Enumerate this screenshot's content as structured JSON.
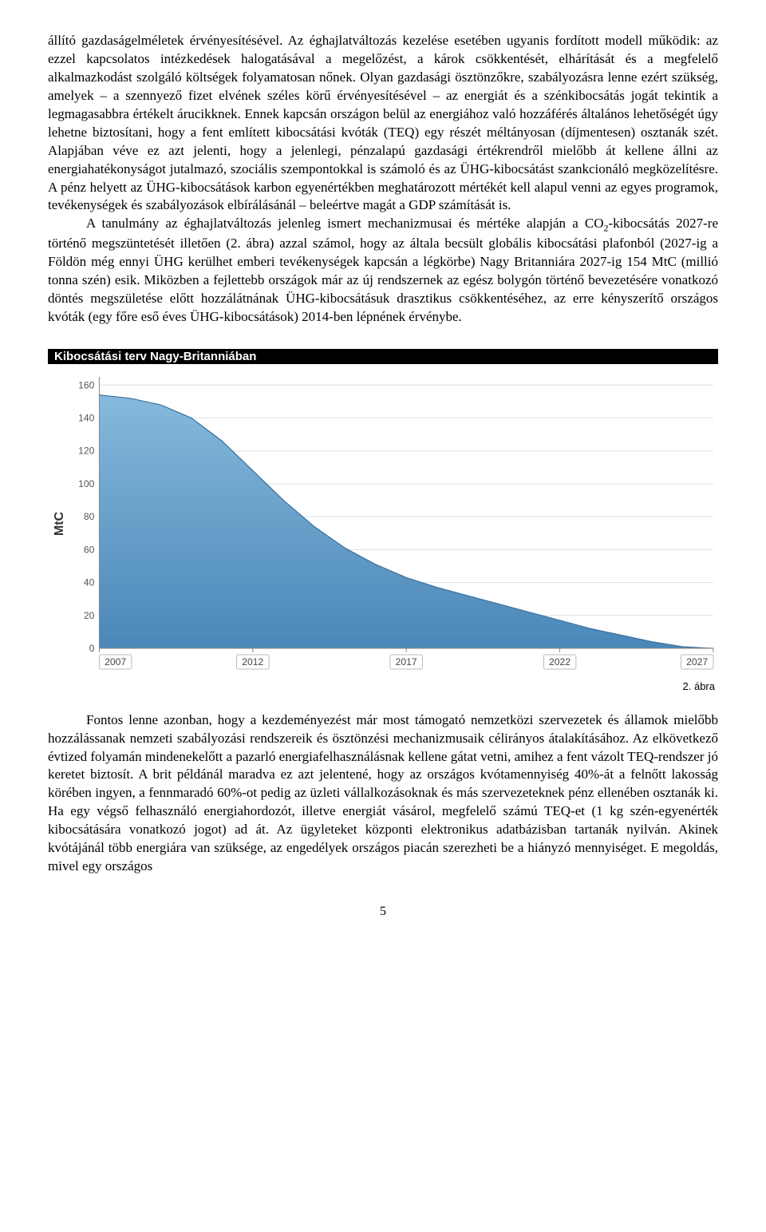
{
  "paragraphs": {
    "p1": "állító gazdaságelméletek érvényesítésével. Az éghajlatváltozás kezelése esetében ugyanis fordított modell működik: az ezzel kapcsolatos intézkedések halogatásával a megelőzést, a károk csökkentését, elhárítását és a megfelelő alkalmazkodást szolgáló költségek folyamatosan nőnek. Olyan gazdasági ösztönzőkre, szabályozásra lenne ezért szükség, amelyek – a szennyező fizet elvének széles körű érvényesítésével – az energiát és a szénkibocsátás jogát tekintik a legmagasabbra értékelt árucikknek. Ennek kapcsán országon belül az energiához való hozzáférés általános lehetőségét úgy lehetne biztosítani, hogy a fent említett kibocsátási kvóták (TEQ) egy részét méltányosan (díjmentesen) osztanák szét. Alapjában véve ez azt jelenti, hogy a jelenlegi, pénzalapú gazdasági értékrendről mielőbb át kellene állni az energiahatékonyságot jutalmazó, szociális szempontokkal is számoló és az ÜHG-kibocsátást szankcionáló megközelítésre. A pénz helyett az ÜHG-kibocsátások karbon egyenértékben meghatározott mértékét kell alapul venni az egyes programok, tevékenységek és szabályozások elbírálásánál – beleértve magát a GDP számítását is.",
    "p2_head": "A tanulmány az éghajlatváltozás jelenleg ismert mechanizmusai és mértéke alapján a CO",
    "p2_sub": "2",
    "p2_tail": "-kibocsátás 2027-re történő megszüntetését illetően (2. ábra) azzal számol, hogy az általa becsült globális kibocsátási plafonból (2027-ig a Földön még ennyi ÜHG kerülhet emberi tevékenységek kapcsán a légkörbe) Nagy Britanniára 2027-ig 154 MtC (millió tonna szén) esik. Miközben a fejlettebb országok már az új rendszernek az egész bolygón történő bevezetésére vonatkozó döntés megszületése előtt hozzálátnának ÜHG-kibocsátásuk drasztikus csökkentéséhez, az erre kényszerítő országos kvóták (egy főre eső éves ÜHG-kibocsátások) 2014-ben lépnének érvénybe.",
    "p3": "Fontos lenne azonban, hogy a kezdeményezést már most támogató nemzetközi szervezetek és államok mielőbb hozzálássanak nemzeti szabályozási rendszereik és ösztönzési mechanizmusaik célirányos átalakításához. Az elkövetkező évtized folyamán mindenekelőtt a pazarló energiafelhasználásnak kellene gátat vetni, amihez a fent vázolt TEQ-rendszer jó keretet biztosít. A brit példánál maradva ez azt jelentené, hogy az országos kvótamennyiség 40%-át a felnőtt lakosság körében ingyen, a fennmaradó 60%-ot pedig az üzleti vállalkozásoknak és más szervezeteknek pénz ellenében osztanák ki. Ha egy végső felhasználó energiahordozót, illetve energiát vásárol, megfelelő számú TEQ-et (1 kg szén-egyenérték kibocsátására vonatkozó jogot) ad át. Az ügyleteket központi elektronikus adatbázisban tartanák nyilván. Akinek kvótájánál több energiára van szüksége, az engedélyek országos piacán szerezheti be a hiányzó mennyiséget. E megoldás, mivel egy országos"
  },
  "figure": {
    "title": "Kibocsátási terv Nagy-Britanniában",
    "caption": "2. ábra",
    "chart": {
      "type": "area",
      "ylabel": "MtC",
      "y_ticks": [
        0,
        20,
        40,
        60,
        80,
        100,
        120,
        140,
        160
      ],
      "x_ticks": [
        2007,
        2012,
        2017,
        2022,
        2027
      ],
      "x_min": 2007,
      "x_max": 2027,
      "y_min": 0,
      "y_max": 165,
      "series": [
        {
          "x": 2007,
          "y": 154
        },
        {
          "x": 2008,
          "y": 152
        },
        {
          "x": 2009,
          "y": 148
        },
        {
          "x": 2010,
          "y": 140
        },
        {
          "x": 2011,
          "y": 126
        },
        {
          "x": 2012,
          "y": 108
        },
        {
          "x": 2013,
          "y": 90
        },
        {
          "x": 2014,
          "y": 74
        },
        {
          "x": 2015,
          "y": 61
        },
        {
          "x": 2016,
          "y": 51
        },
        {
          "x": 2017,
          "y": 43
        },
        {
          "x": 2018,
          "y": 37
        },
        {
          "x": 2019,
          "y": 32
        },
        {
          "x": 2020,
          "y": 27
        },
        {
          "x": 2021,
          "y": 22
        },
        {
          "x": 2022,
          "y": 17
        },
        {
          "x": 2023,
          "y": 12
        },
        {
          "x": 2024,
          "y": 8
        },
        {
          "x": 2025,
          "y": 4
        },
        {
          "x": 2026,
          "y": 1
        },
        {
          "x": 2027,
          "y": 0
        }
      ],
      "fill_top_color": "#86b9dc",
      "fill_bottom_color": "#4a87b8",
      "line_color": "#3b71a0",
      "grid_color": "#e0e0e0",
      "axis_color": "#888888",
      "background_color": "#ffffff",
      "tick_font_size": 12,
      "y_label_font_size": 16,
      "title_font_size": 15,
      "line_width": 1.2
    }
  },
  "page_number": "5"
}
